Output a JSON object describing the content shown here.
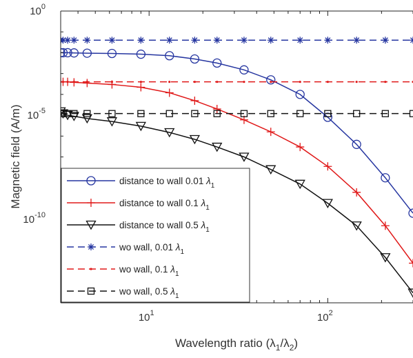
{
  "chart_data": {
    "type": "line",
    "title": "",
    "xlabel": "Wavelength ratio (λ₁/λ₂)",
    "ylabel": "Magnetic field (A/m)",
    "xscale": "log",
    "yscale": "log",
    "xlim": [
      3.2,
      300
    ],
    "ylim": [
      1e-14,
      1
    ],
    "grid": false,
    "legend_position": "bottom-left",
    "x_ticks": [
      {
        "value": 10,
        "base": "10",
        "exp": "1"
      },
      {
        "value": 100,
        "base": "10",
        "exp": "2"
      }
    ],
    "y_ticks": [
      {
        "value": 1,
        "base": "10",
        "exp": "0"
      },
      {
        "value": 1e-05,
        "base": "10",
        "exp": "-5"
      },
      {
        "value": 1e-10,
        "base": "10",
        "exp": "-10"
      }
    ],
    "x": [
      3.2,
      3.3,
      3.5,
      3.8,
      4.5,
      6.2,
      9,
      13,
      18,
      24,
      34,
      48,
      70,
      100,
      145,
      210,
      300
    ],
    "series": [
      {
        "name": "distance to wall 0.01 λ1",
        "legend_main": "distance to wall 0.01 ",
        "legend_sym": "λ",
        "legend_sub": "1",
        "color": "#2535a0",
        "line": "solid",
        "marker": "circle",
        "values": [
          0.01,
          0.01,
          0.01,
          0.0098,
          0.0095,
          0.0092,
          0.0085,
          0.0072,
          0.005,
          0.0032,
          0.0015,
          0.0005,
          0.0001,
          8e-06,
          4e-07,
          1e-08,
          2e-10
        ]
      },
      {
        "name": "distance to wall 0.1 λ1",
        "legend_main": "distance to wall 0.1 ",
        "legend_sym": "λ",
        "legend_sub": "1",
        "color": "#e01818",
        "line": "solid",
        "marker": "plus",
        "values": [
          0.0004,
          0.0004,
          0.0004,
          0.00038,
          0.00035,
          0.0003,
          0.00022,
          0.00012,
          5e-05,
          2e-05,
          6e-06,
          1.6e-06,
          3e-07,
          3.5e-08,
          2e-09,
          5e-11,
          8e-13
        ]
      },
      {
        "name": "distance to wall 0.5 λ1",
        "legend_main": "distance to wall 0.5 ",
        "legend_sym": "λ",
        "legend_sub": "1",
        "color": "#111111",
        "line": "solid",
        "marker": "triangle-down",
        "values": [
          1.5e-05,
          1.2e-05,
          1e-05,
          9e-06,
          7e-06,
          5e-06,
          3e-06,
          1.5e-06,
          7e-07,
          3e-07,
          1e-07,
          2.5e-08,
          5e-09,
          6e-10,
          5e-11,
          1.5e-12,
          3e-14
        ]
      },
      {
        "name": "wo wall, 0.01 λ1",
        "legend_main": "wo wall, 0.01 ",
        "legend_sym": "λ",
        "legend_sub": "1",
        "color": "#2535a0",
        "line": "dashed",
        "marker": "asterisk",
        "values": [
          0.04,
          0.04,
          0.04,
          0.04,
          0.04,
          0.04,
          0.04,
          0.04,
          0.04,
          0.04,
          0.04,
          0.04,
          0.04,
          0.04,
          0.04,
          0.04,
          0.04
        ]
      },
      {
        "name": "wo wall, 0.1 λ1",
        "legend_main": "wo wall, 0.1 ",
        "legend_sym": "λ",
        "legend_sub": "1",
        "color": "#e01818",
        "line": "dashed",
        "marker": "point",
        "values": [
          0.0004,
          0.0004,
          0.0004,
          0.0004,
          0.0004,
          0.0004,
          0.0004,
          0.0004,
          0.0004,
          0.0004,
          0.0004,
          0.0004,
          0.0004,
          0.0004,
          0.0004,
          0.0004,
          0.0004
        ]
      },
      {
        "name": "wo wall, 0.5 λ1",
        "legend_main": "wo wall, 0.5 ",
        "legend_sym": "λ",
        "legend_sub": "1",
        "color": "#111111",
        "line": "dashed",
        "marker": "square",
        "values": [
          1.2e-05,
          1.2e-05,
          1.2e-05,
          1.2e-05,
          1.2e-05,
          1.2e-05,
          1.2e-05,
          1.2e-05,
          1.2e-05,
          1.2e-05,
          1.2e-05,
          1.2e-05,
          1.2e-05,
          1.2e-05,
          1.2e-05,
          1.2e-05,
          1.2e-05
        ]
      }
    ]
  }
}
